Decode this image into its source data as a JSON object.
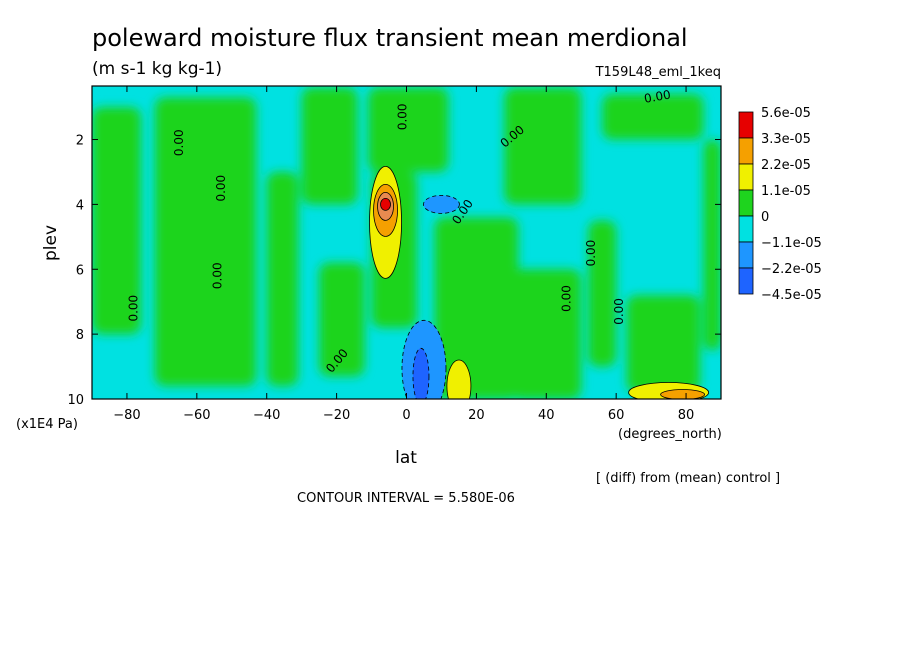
{
  "chart_data": {
    "type": "heatmap",
    "title": "poleward moisture flux transient mean merdional",
    "subtitle": "(m s-1 kg kg-1)",
    "run_label": "T159L48_eml_1keq",
    "xlabel": "lat",
    "x_units": "(degrees_north)",
    "ylabel": "plev",
    "y_units": "(x1E4 Pa)",
    "xlim": [
      -90,
      90
    ],
    "ylim": [
      10,
      0.35
    ],
    "x_ticks": [
      -80,
      -60,
      -40,
      -20,
      0,
      20,
      40,
      60,
      80
    ],
    "y_ticks": [
      2,
      4,
      6,
      8,
      10
    ],
    "contour_interval_text": "CONTOUR INTERVAL = 5.580E-06",
    "note": "[ (diff) from (mean) control ]",
    "legend_placement": "right",
    "colorbar": [
      {
        "label": "5.6e-05",
        "color": "#e60000"
      },
      {
        "label": "3.3e-05",
        "color": "#f5a000"
      },
      {
        "label": "2.2e-05",
        "color": "#f0f000"
      },
      {
        "label": "1.1e-05",
        "color": "#1ed41e"
      },
      {
        "label": "0",
        "color": "#00e1e1"
      },
      {
        "label": "−1.1e-05",
        "color": "#1e96ff"
      },
      {
        "label": "−2.2e-05",
        "color": "#1e64ff"
      },
      {
        "label": "−4.5e-05",
        "color": ""
      }
    ],
    "field_colors": {
      "positive": "#1ed41e",
      "negative": "#00e1e1",
      "neg_mid": "#1e96ff",
      "neg_strong": "#1e64ff",
      "pos_mid": "#f0f000",
      "pos_high": "#f5a000",
      "pos_max": "#e60000"
    },
    "positive_regions": [
      {
        "x": [
          -90,
          -76
        ],
        "y": [
          1.0,
          8.0
        ]
      },
      {
        "x": [
          -72,
          -43
        ],
        "y": [
          0.7,
          9.6
        ]
      },
      {
        "x": [
          -40,
          -31
        ],
        "y": [
          3.0,
          9.6
        ]
      },
      {
        "x": [
          -30,
          -14
        ],
        "y": [
          0.4,
          4.0
        ]
      },
      {
        "x": [
          -25,
          -12
        ],
        "y": [
          5.8,
          9.3
        ]
      },
      {
        "x": [
          -11,
          12
        ],
        "y": [
          0.4,
          3.0
        ]
      },
      {
        "x": [
          -10,
          3
        ],
        "y": [
          3.0,
          7.8
        ]
      },
      {
        "x": [
          8,
          32
        ],
        "y": [
          4.4,
          10.0
        ]
      },
      {
        "x": [
          28,
          50
        ],
        "y": [
          0.4,
          4.0
        ]
      },
      {
        "x": [
          30,
          50
        ],
        "y": [
          6.0,
          10.0
        ]
      },
      {
        "x": [
          52,
          60
        ],
        "y": [
          4.5,
          9.0
        ]
      },
      {
        "x": [
          56,
          85
        ],
        "y": [
          0.6,
          2.0
        ]
      },
      {
        "x": [
          63,
          84
        ],
        "y": [
          6.8,
          9.8
        ]
      },
      {
        "x": [
          85,
          90
        ],
        "y": [
          2.0,
          8.5
        ]
      }
    ],
    "anomalies": [
      {
        "name": "max-positive-core",
        "lat": -6,
        "plev": 4.0,
        "level": "pos_max"
      },
      {
        "name": "surface-positive-15N",
        "lat": 15,
        "plev": 9.6,
        "level": "pos_mid"
      },
      {
        "name": "surface-positive-75N",
        "lat": 75,
        "plev": 9.8,
        "level": "pos_high"
      },
      {
        "name": "negative-5N-surface",
        "lat": 5,
        "plev": 9.3,
        "level": "neg_strong"
      },
      {
        "name": "negative-10N-4plev",
        "lat": 10,
        "plev": 4.0,
        "level": "neg_mid"
      }
    ],
    "contour_labels": [
      {
        "text": "0.00",
        "lat": -77,
        "plev": 7.2,
        "angle": -90
      },
      {
        "text": "0.00",
        "lat": -64,
        "plev": 2.1,
        "angle": -90
      },
      {
        "text": "0.00",
        "lat": -52,
        "plev": 3.5,
        "angle": -90
      },
      {
        "text": "0.00",
        "lat": -53,
        "plev": 6.2,
        "angle": -90
      },
      {
        "text": "0.00",
        "lat": -19,
        "plev": 8.9,
        "angle": -50
      },
      {
        "text": "0.00",
        "lat": 0,
        "plev": 1.3,
        "angle": -90
      },
      {
        "text": "0.00",
        "lat": 17,
        "plev": 4.3,
        "angle": -55
      },
      {
        "text": "0.00",
        "lat": 31,
        "plev": 2.0,
        "angle": -40
      },
      {
        "text": "0.00",
        "lat": 47,
        "plev": 6.9,
        "angle": -90
      },
      {
        "text": "0.00",
        "lat": 54,
        "plev": 5.5,
        "angle": -90
      },
      {
        "text": "0.00",
        "lat": 62,
        "plev": 7.3,
        "angle": -90
      },
      {
        "text": "0.00",
        "lat": 72,
        "plev": 0.8,
        "angle": -10
      }
    ]
  }
}
